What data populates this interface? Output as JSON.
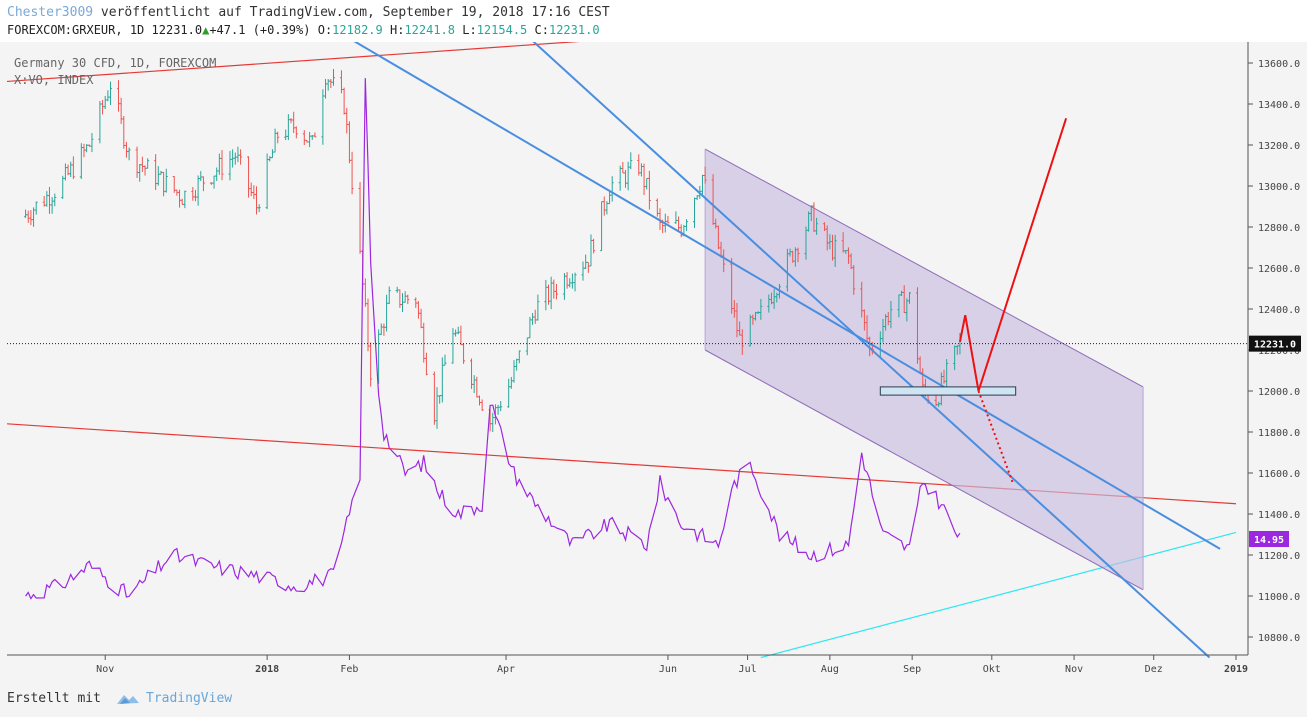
{
  "header": {
    "author": "Chester3009",
    "published": "veröffentlicht auf TradingView.com, September 19, 2018 17:16 CEST",
    "symbol": "FOREXCOM:GRXEUR, 1D",
    "last": "12231.0",
    "change": "+47.1",
    "change_pct": "(+0.39%)",
    "open_label": "O:",
    "open": "12182.9",
    "high_label": "H:",
    "high": "12241.8",
    "low_label": "L:",
    "low": "12154.5",
    "close_label": "C:",
    "close": "12231.0"
  },
  "legend": {
    "main": "Germany 30 CFD, 1D, FOREXCOM",
    "secondary": "X:VO, INDEX"
  },
  "footer": {
    "made_with": "Erstellt mit",
    "brand": "TradingView"
  },
  "colors": {
    "up": "#26a69a",
    "down": "#ef5350",
    "indicator": "#9c27e0",
    "channel_fill": "#c9bde0",
    "blue_trend": "#4a8ee0",
    "red_line": "#e53935",
    "cyan_line": "#2ee6f0",
    "price_tag": "#111111",
    "indicator_tag": "#9c27e0"
  },
  "chart_data": {
    "type": "candlestick",
    "x_ticks": [
      "Nov",
      "2018",
      "Feb",
      "Apr",
      "Jun",
      "Jul",
      "Aug",
      "Sep",
      "Okt",
      "Nov",
      "Dez",
      "2019"
    ],
    "y_ticks": [
      "13600.0",
      "13400.0",
      "13200.0",
      "13000.0",
      "12800.0",
      "12600.0",
      "12400.0",
      "12200.0",
      "12000.0",
      "11800.0",
      "11600.0",
      "11400.0",
      "11200.0",
      "11000.0",
      "10800.0"
    ],
    "y_range": [
      10700,
      13720
    ],
    "last_price_label": "12231.0",
    "indicator_label": "14.95",
    "price_path": [
      [
        "2017-10-01",
        12850
      ],
      [
        "2017-10-15",
        13000
      ],
      [
        "2017-10-26",
        13200
      ],
      [
        "2017-11-03",
        13500
      ],
      [
        "2017-11-10",
        13150
      ],
      [
        "2017-11-20",
        13050
      ],
      [
        "2017-11-30",
        12950
      ],
      [
        "2017-12-10",
        13050
      ],
      [
        "2017-12-20",
        13150
      ],
      [
        "2017-12-28",
        12900
      ],
      [
        "2018-01-05",
        13250
      ],
      [
        "2018-01-12",
        13300
      ],
      [
        "2018-01-18",
        13200
      ],
      [
        "2018-01-23",
        13550
      ],
      [
        "2018-01-30",
        13400
      ],
      [
        "2018-02-05",
        12650
      ],
      [
        "2018-02-09",
        12100
      ],
      [
        "2018-02-16",
        12450
      ],
      [
        "2018-02-26",
        12450
      ],
      [
        "2018-03-05",
        11900
      ],
      [
        "2018-03-12",
        12300
      ],
      [
        "2018-03-20",
        12050
      ],
      [
        "2018-03-26",
        11850
      ],
      [
        "2018-04-03",
        12050
      ],
      [
        "2018-04-12",
        12400
      ],
      [
        "2018-04-23",
        12550
      ],
      [
        "2018-05-02",
        12650
      ],
      [
        "2018-05-10",
        13000
      ],
      [
        "2018-05-21",
        13100
      ],
      [
        "2018-05-29",
        12800
      ],
      [
        "2018-06-06",
        12800
      ],
      [
        "2018-06-14",
        13050
      ],
      [
        "2018-06-20",
        12700
      ],
      [
        "2018-06-28",
        12250
      ],
      [
        "2018-07-05",
        12350
      ],
      [
        "2018-07-13",
        12550
      ],
      [
        "2018-07-25",
        12850
      ],
      [
        "2018-08-01",
        12700
      ],
      [
        "2018-08-08",
        12650
      ],
      [
        "2018-08-16",
        12200
      ],
      [
        "2018-08-24",
        12400
      ],
      [
        "2018-08-31",
        12450
      ],
      [
        "2018-09-05",
        12000
      ],
      [
        "2018-09-10",
        11960
      ],
      [
        "2018-09-19",
        12231
      ]
    ],
    "indicator_series": {
      "name": "X:VO, INDEX",
      "values": [
        [
          "2017-10-01",
          11000
        ],
        [
          "2017-10-15",
          11050
        ],
        [
          "2017-10-26",
          11150
        ],
        [
          "2017-11-10",
          11000
        ],
        [
          "2017-11-26",
          11200
        ],
        [
          "2017-12-10",
          11150
        ],
        [
          "2017-12-28",
          11100
        ],
        [
          "2018-01-12",
          11050
        ],
        [
          "2018-01-26",
          11100
        ],
        [
          "2018-02-01",
          11400
        ],
        [
          "2018-02-05",
          11600
        ],
        [
          "2018-02-07",
          13530
        ],
        [
          "2018-02-10",
          12200
        ],
        [
          "2018-02-14",
          11800
        ],
        [
          "2018-02-22",
          11600
        ],
        [
          "2018-03-01",
          11650
        ],
        [
          "2018-03-07",
          11500
        ],
        [
          "2018-03-14",
          11400
        ],
        [
          "2018-03-23",
          11450
        ],
        [
          "2018-03-26",
          11950
        ],
        [
          "2018-04-04",
          11600
        ],
        [
          "2018-04-12",
          11450
        ],
        [
          "2018-04-26",
          11250
        ],
        [
          "2018-05-10",
          11350
        ],
        [
          "2018-05-24",
          11250
        ],
        [
          "2018-05-29",
          11550
        ],
        [
          "2018-06-06",
          11350
        ],
        [
          "2018-06-20",
          11250
        ],
        [
          "2018-06-26",
          11550
        ],
        [
          "2018-07-02",
          11650
        ],
        [
          "2018-07-13",
          11300
        ],
        [
          "2018-07-25",
          11200
        ],
        [
          "2018-08-08",
          11250
        ],
        [
          "2018-08-13",
          11700
        ],
        [
          "2018-08-21",
          11300
        ],
        [
          "2018-08-31",
          11230
        ],
        [
          "2018-09-05",
          11560
        ],
        [
          "2018-09-12",
          11450
        ],
        [
          "2018-09-19",
          11270
        ]
      ]
    },
    "channel": {
      "upper": [
        [
          "2018-06-15",
          13180
        ],
        [
          "2018-11-27",
          12020
        ]
      ],
      "lower": [
        [
          "2018-06-15",
          12200
        ],
        [
          "2018-11-27",
          11030
        ]
      ]
    },
    "blue_trend_lines": [
      [
        [
          "2018-02-01",
          13720
        ],
        [
          "2018-12-26",
          11230
        ]
      ],
      [
        [
          "2018-04-10",
          13720
        ],
        [
          "2018-12-22",
          10700
        ]
      ]
    ],
    "red_trend_lines": [
      [
        [
          "2017-09-25",
          13510
        ],
        [
          "2018-05-15",
          13720
        ]
      ],
      [
        [
          "2017-09-25",
          11840
        ],
        [
          "2019-01-01",
          11450
        ]
      ]
    ],
    "cyan_trend_line": [
      [
        "2018-07-06",
        10700
      ],
      [
        "2019-01-01",
        11310
      ]
    ],
    "support_zone": {
      "from": "2018-08-20",
      "to": "2018-10-10",
      "low": 11980,
      "high": 12020
    },
    "projection_path": [
      [
        "2018-09-19",
        12240
      ],
      [
        "2018-09-21",
        12370
      ],
      [
        "2018-09-26",
        12000
      ],
      [
        "2018-10-29",
        13330
      ]
    ],
    "projection_dotted": [
      [
        "2018-09-26",
        12000
      ],
      [
        "2018-10-09",
        11550
      ]
    ],
    "last_price": 12231.0
  }
}
